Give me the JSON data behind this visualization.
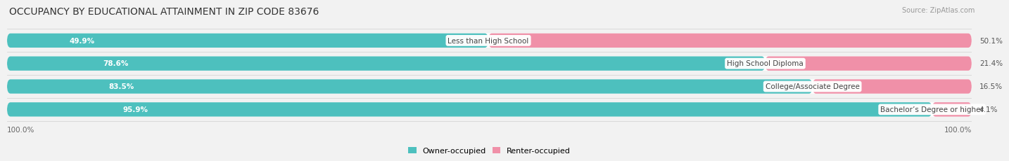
{
  "title": "OCCUPANCY BY EDUCATIONAL ATTAINMENT IN ZIP CODE 83676",
  "source": "Source: ZipAtlas.com",
  "categories": [
    "Less than High School",
    "High School Diploma",
    "College/Associate Degree",
    "Bachelor’s Degree or higher"
  ],
  "owner_pct": [
    49.9,
    78.6,
    83.5,
    95.9
  ],
  "renter_pct": [
    50.1,
    21.4,
    16.5,
    4.1
  ],
  "owner_color": "#4dc0be",
  "renter_color": "#f090a8",
  "background_color": "#f2f2f2",
  "bar_bg_color": "#ffffff",
  "title_fontsize": 10,
  "label_fontsize": 7.5,
  "pct_inside_fontsize": 7.5,
  "legend_fontsize": 8,
  "source_fontsize": 7,
  "bar_height": 0.62,
  "x_left_label": "100.0%",
  "x_right_label": "100.0%"
}
